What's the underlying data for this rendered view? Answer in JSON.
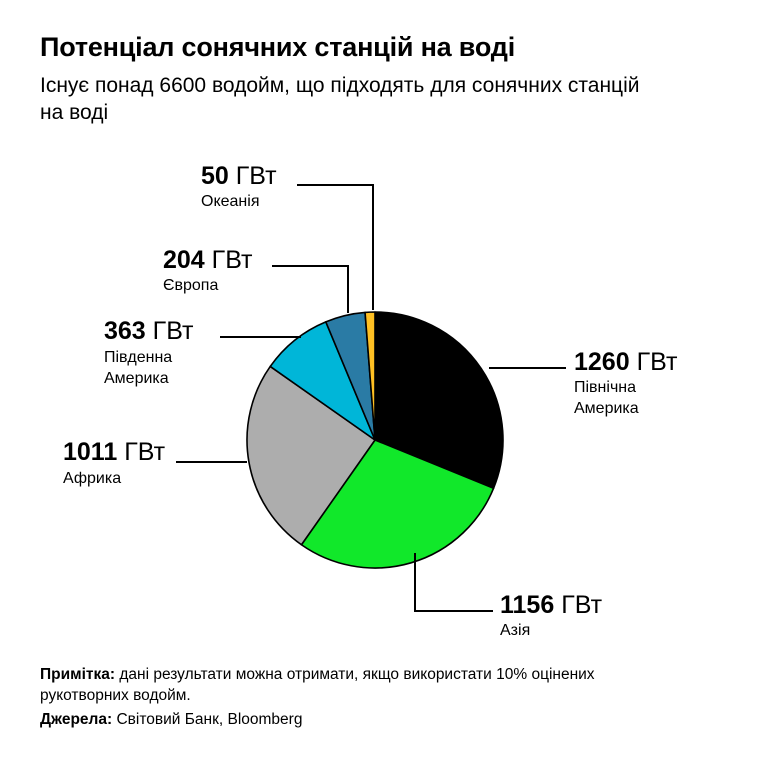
{
  "header": {
    "title": "Потенціал сонячних станцій на воді",
    "subtitle": "Існує понад 6600 водойм, що підходять для сонячних станцій на воді"
  },
  "chart_data": {
    "type": "pie",
    "unit": "ГВт",
    "slices": [
      {
        "label": "Північна Америка",
        "value": 1260,
        "value_text": "1260",
        "color": "#000000"
      },
      {
        "label": "Азія",
        "value": 1156,
        "value_text": "1156",
        "color": "#11e82a"
      },
      {
        "label": "Африка",
        "value": 1011,
        "value_text": "1011",
        "color": "#adadad"
      },
      {
        "label": "Південна Америка",
        "value": 363,
        "value_text": "363",
        "color": "#00b6d8"
      },
      {
        "label": "Європа",
        "value": 204,
        "value_text": "204",
        "color": "#2a7ba5"
      },
      {
        "label": "Океанія",
        "value": 50,
        "value_text": "50",
        "color": "#ffc023"
      }
    ],
    "start": "12 o'clock",
    "direction": "clockwise"
  },
  "footer": {
    "note_label": "Примітка:",
    "note_text": " дані результати можна отримати, якщо використати 10% оцінених рукотворних водойм.",
    "source_label": "Джерела:",
    "source_text": " Світовий Банк, Bloomberg"
  }
}
